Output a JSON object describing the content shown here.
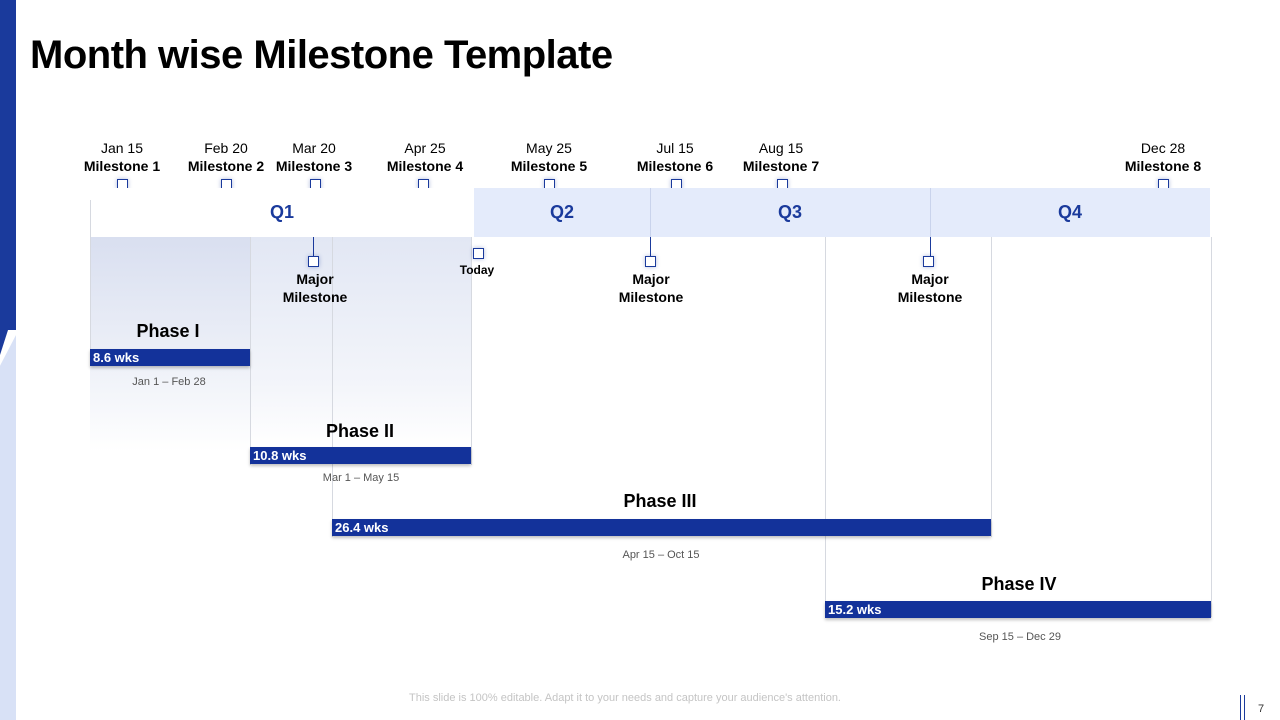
{
  "title": "Month wise Milestone Template",
  "milestones": [
    {
      "date": "Jan 15",
      "name": "Milestone 1"
    },
    {
      "date": "Feb 20",
      "name": "Milestone 2"
    },
    {
      "date": "Mar 20",
      "name": "Milestone 3"
    },
    {
      "date": "Apr 25",
      "name": "Milestone 4"
    },
    {
      "date": "May 25",
      "name": "Milestone 5"
    },
    {
      "date": "Jul 15",
      "name": "Milestone 6"
    },
    {
      "date": "Aug 15",
      "name": "Milestone 7"
    },
    {
      "date": "Dec 28",
      "name": "Milestone 8"
    }
  ],
  "quarters": [
    "Q1",
    "Q2",
    "Q3",
    "Q4"
  ],
  "major_milestones": [
    {
      "line1": "Major",
      "line2": "Milestone"
    },
    {
      "line1": "Major",
      "line2": "Milestone"
    },
    {
      "line1": "Major",
      "line2": "Milestone"
    }
  ],
  "today_label": "Today",
  "phases": [
    {
      "title": "Phase I",
      "duration": "8.6 wks",
      "range": "Jan 1 – Feb 28"
    },
    {
      "title": "Phase II",
      "duration": "10.8 wks",
      "range": "Mar 1 – May 15"
    },
    {
      "title": "Phase III",
      "duration": "26.4 wks",
      "range": "Apr 15 – Oct 15"
    },
    {
      "title": "Phase IV",
      "duration": "15.2 wks",
      "range": "Sep 15 – Dec 29"
    }
  ],
  "footer": "This slide is 100% editable. Adapt it to your needs and capture your audience's attention.",
  "page_number": "7",
  "colors": {
    "accent": "#1a3a9c",
    "bar": "#13329a",
    "quarter_band": "#e4ebfb"
  }
}
